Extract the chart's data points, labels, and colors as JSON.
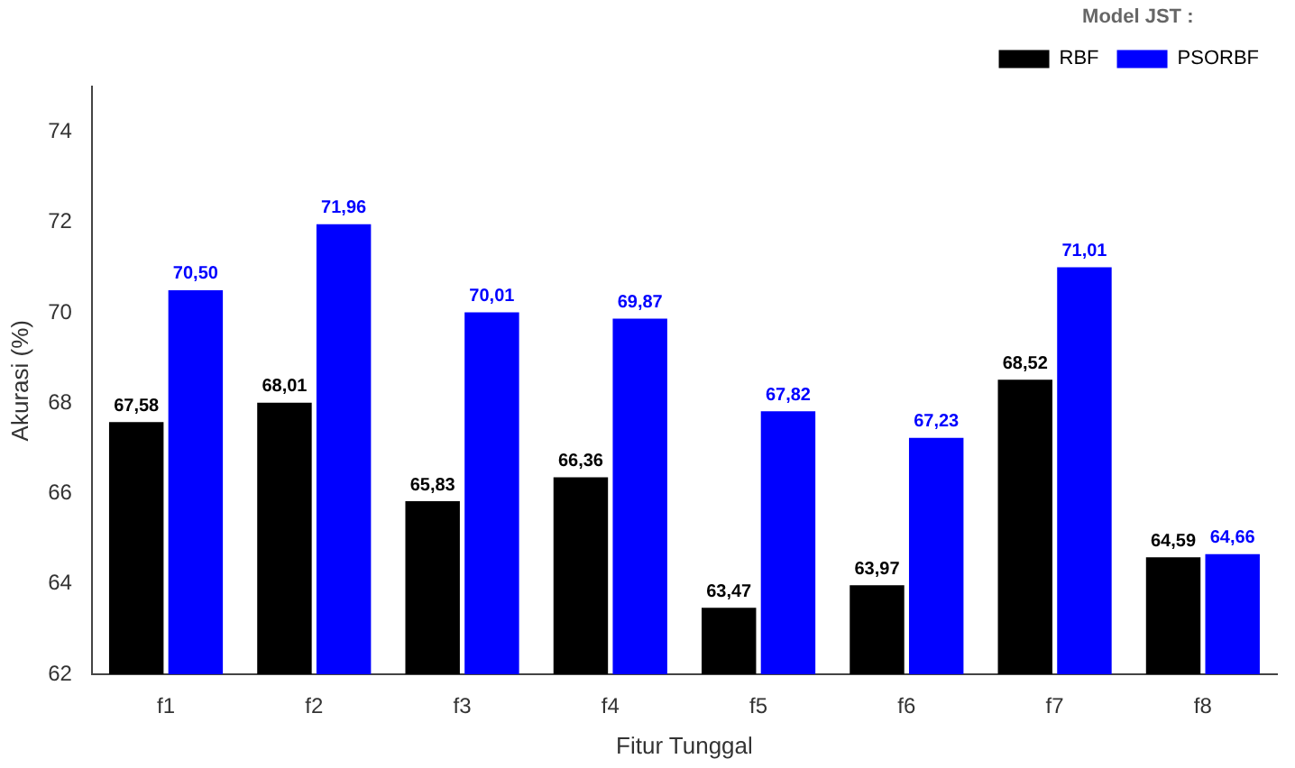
{
  "chart_data": {
    "type": "bar",
    "xlabel": "Fitur Tunggal",
    "ylabel": "Akurasi (%)",
    "legend_title": "Model JST :",
    "legend": "top right",
    "grid": false,
    "categories": [
      "f1",
      "f2",
      "f3",
      "f4",
      "f5",
      "f6",
      "f7",
      "f8"
    ],
    "ylim": [
      62,
      75
    ],
    "yticks": [
      62,
      64,
      66,
      68,
      70,
      72,
      74
    ],
    "series": [
      {
        "name": "RBF",
        "color": "#000000",
        "values": [
          67.58,
          68.01,
          65.83,
          66.36,
          63.47,
          63.97,
          68.52,
          64.59
        ],
        "value_labels": [
          "67,58",
          "68,01",
          "65,83",
          "66,36",
          "63,47",
          "63,97",
          "68,52",
          "64,59"
        ]
      },
      {
        "name": "PSORBF",
        "color": "#0000ff",
        "values": [
          70.5,
          71.96,
          70.01,
          69.87,
          67.82,
          67.23,
          71.01,
          64.66
        ],
        "value_labels": [
          "70,50",
          "71,96",
          "70,01",
          "69,87",
          "67,82",
          "67,23",
          "71,01",
          "64,66"
        ]
      }
    ]
  }
}
